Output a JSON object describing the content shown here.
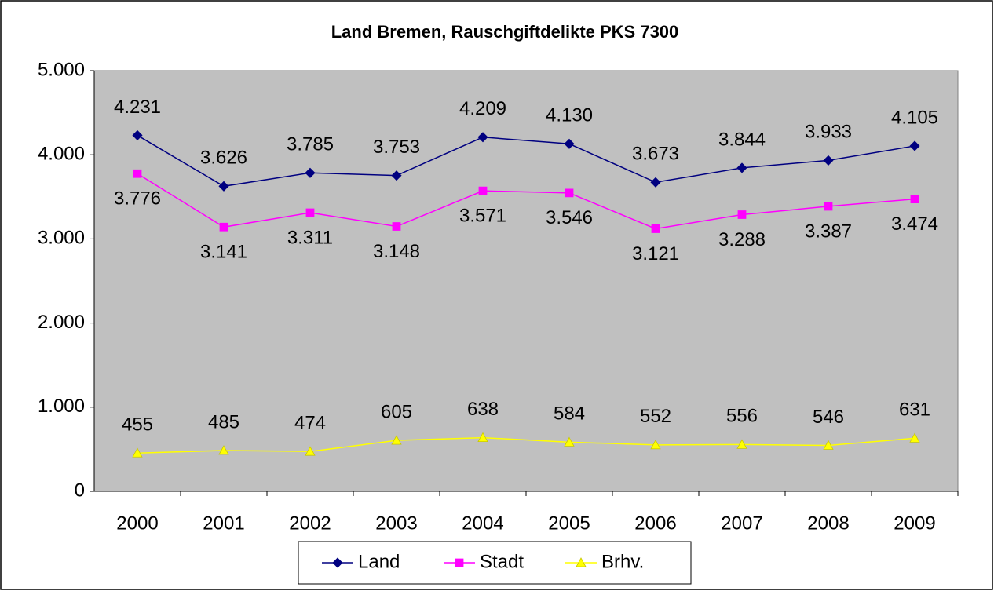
{
  "chart_data": {
    "type": "line",
    "title": "Land Bremen, Rauschgiftdelikte PKS 7300",
    "categories": [
      "2000",
      "2001",
      "2002",
      "2003",
      "2004",
      "2005",
      "2006",
      "2007",
      "2008",
      "2009"
    ],
    "series": [
      {
        "name": "Land",
        "color": "#000080",
        "marker": "diamond",
        "values": [
          4231,
          3626,
          3785,
          3753,
          4209,
          4130,
          3673,
          3844,
          3933,
          4105
        ],
        "value_labels": [
          "4.231",
          "3.626",
          "3.785",
          "3.753",
          "4.209",
          "4.130",
          "3.673",
          "3.844",
          "3.933",
          "4.105"
        ]
      },
      {
        "name": "Stadt",
        "color": "#FF00FF",
        "marker": "square",
        "values": [
          3776,
          3141,
          3311,
          3148,
          3571,
          3546,
          3121,
          3288,
          3387,
          3474
        ],
        "value_labels": [
          "3.776",
          "3.141",
          "3.311",
          "3.148",
          "3.571",
          "3.546",
          "3.121",
          "3.288",
          "3.387",
          "3.474"
        ]
      },
      {
        "name": "Brhv.",
        "color": "#FFFF00",
        "marker": "triangle",
        "values": [
          455,
          485,
          474,
          605,
          638,
          584,
          552,
          556,
          546,
          631
        ],
        "value_labels": [
          "455",
          "485",
          "474",
          "605",
          "638",
          "584",
          "552",
          "556",
          "546",
          "631"
        ]
      }
    ],
    "ylim": [
      0,
      5000
    ],
    "yticks": [
      0,
      {
        "value": 1000,
        "label": "1.000"
      },
      {
        "value": 2000,
        "label": "2.000"
      },
      {
        "value": 3000,
        "label": "3.000"
      },
      {
        "value": 4000,
        "label": "4.000"
      },
      {
        "value": 5000,
        "label": "5.000"
      }
    ],
    "legend": "bottom"
  }
}
